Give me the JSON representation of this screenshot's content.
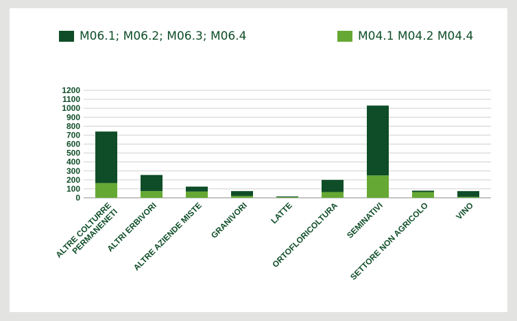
{
  "colors": {
    "background": "#e3e3e1",
    "panel": "#ffffff",
    "dark_green": "#0e4d27",
    "light_green": "#66a834",
    "grid": "#cfcfcf",
    "text": "#0e4d27"
  },
  "chart_data": {
    "type": "bar",
    "stacked": true,
    "title": "",
    "xlabel": "",
    "ylabel": "",
    "ylim": [
      0,
      1200
    ],
    "yticks": [
      0,
      100,
      200,
      300,
      400,
      500,
      600,
      700,
      800,
      900,
      1000,
      1100,
      1200
    ],
    "grid": true,
    "legend_position": "top",
    "categories": [
      [
        "ALTRE COLTURRE",
        "PERMANENETI"
      ],
      [
        "ALTRI ERBIVORI"
      ],
      [
        "ALTRE AZIENDE MISTE"
      ],
      [
        "GRANIVORI"
      ],
      [
        "LATTE"
      ],
      [
        "ORTOFLORICOLTURA"
      ],
      [
        "SEMINATIVI"
      ],
      [
        "SETTORE NON AGRICOLO"
      ],
      [
        "VINO"
      ]
    ],
    "series": [
      {
        "name": "M04.1 M04.2 M04.4",
        "color": "#66a834",
        "values": [
          165,
          75,
          70,
          20,
          8,
          65,
          250,
          65,
          10
        ]
      },
      {
        "name": "M06.1; M06.2; M06.3; M06.4",
        "color": "#0e4d27",
        "values": [
          575,
          180,
          55,
          55,
          7,
          135,
          780,
          15,
          65
        ]
      }
    ]
  }
}
